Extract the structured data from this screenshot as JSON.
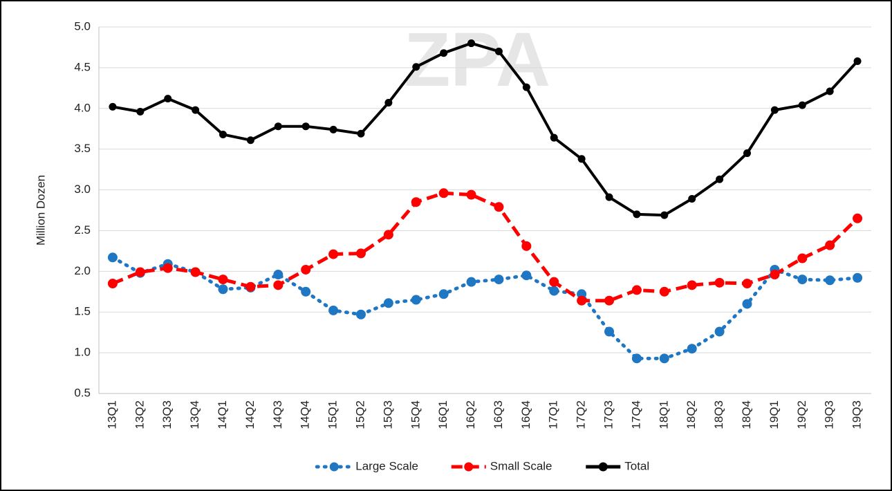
{
  "chart_data": {
    "type": "line",
    "watermark": "ZPA",
    "y_label": "Million Dozen",
    "categories": [
      "13Q1",
      "13Q2",
      "13Q3",
      "13Q4",
      "14Q1",
      "14Q2",
      "14Q3",
      "14Q4",
      "15Q1",
      "15Q2",
      "15Q3",
      "15Q4",
      "16Q1",
      "16Q2",
      "16Q3",
      "16Q4",
      "17Q1",
      "17Q2",
      "17Q3",
      "17Q4",
      "18Q1",
      "18Q2",
      "18Q3",
      "18Q4",
      "19Q1",
      "19Q2",
      "19Q3",
      "19Q3"
    ],
    "series": [
      {
        "name": "Large Scale",
        "color": "#1f77c4",
        "style": "dotted",
        "values": [
          2.17,
          1.98,
          2.09,
          1.99,
          1.78,
          1.8,
          1.96,
          1.75,
          1.52,
          1.47,
          1.61,
          1.65,
          1.72,
          1.87,
          1.9,
          1.95,
          1.76,
          1.72,
          1.26,
          0.93,
          0.93,
          1.05,
          1.26,
          1.6,
          2.02,
          1.9,
          1.89,
          1.92
        ]
      },
      {
        "name": "Small Scale",
        "color": "#ff0000",
        "style": "dashed",
        "values": [
          1.85,
          1.99,
          2.04,
          1.99,
          1.9,
          1.81,
          1.83,
          2.02,
          2.21,
          2.22,
          2.45,
          2.85,
          2.96,
          2.94,
          2.79,
          2.31,
          1.87,
          1.64,
          1.64,
          1.77,
          1.75,
          1.83,
          1.86,
          1.85,
          1.96,
          2.16,
          2.32,
          2.65
        ]
      },
      {
        "name": "Total",
        "color": "#000000",
        "style": "solid",
        "values": [
          4.02,
          3.96,
          4.12,
          3.98,
          3.68,
          3.61,
          3.78,
          3.78,
          3.74,
          3.69,
          4.07,
          4.51,
          4.68,
          4.8,
          4.7,
          4.26,
          3.64,
          3.38,
          2.91,
          2.7,
          2.69,
          2.89,
          3.13,
          3.45,
          3.98,
          4.04,
          4.21,
          4.58
        ]
      }
    ],
    "ylim": [
      0.5,
      5.0
    ],
    "yticks": [
      0.5,
      {
        "value": 1.0,
        "label": "1.0"
      },
      1.5,
      {
        "value": 2.0,
        "label": "2.0"
      },
      2.5,
      {
        "value": 3.0,
        "label": "3.0"
      },
      3.5,
      {
        "value": 4.0,
        "label": "4.0"
      },
      4.5,
      {
        "value": 5.0,
        "label": "5.0"
      }
    ],
    "grid": true,
    "legend": "bottom"
  }
}
